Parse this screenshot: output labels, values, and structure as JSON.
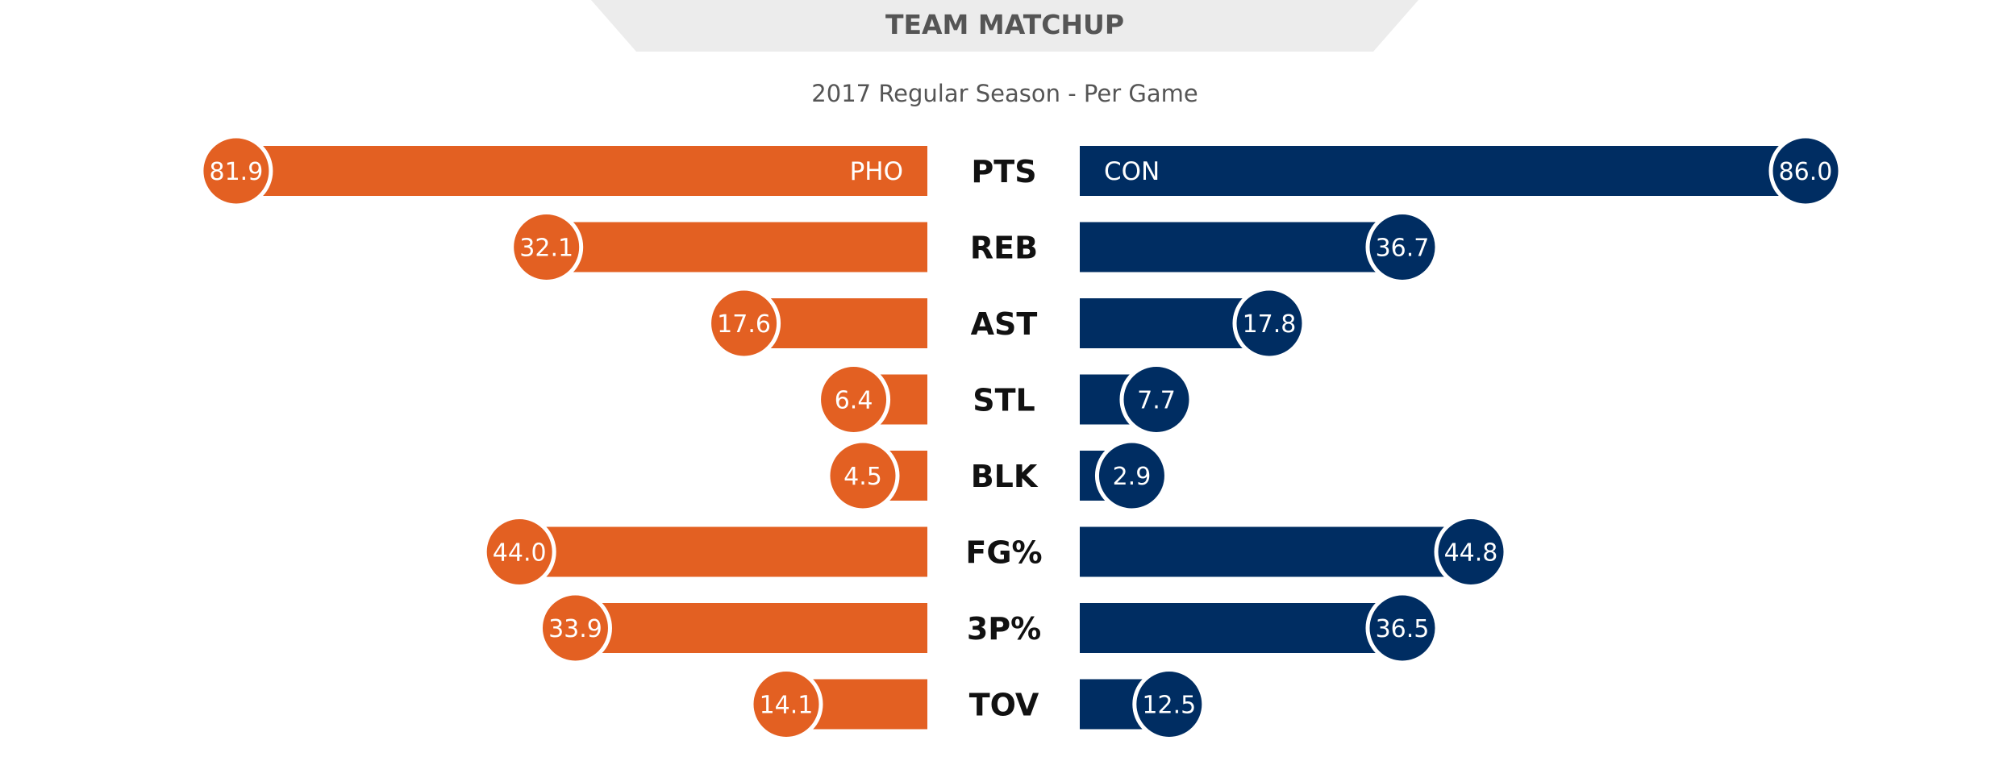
{
  "header": {
    "title": "TEAM MATCHUP",
    "subtitle": "2017 Regular Season - Per Game"
  },
  "colors": {
    "left_team": "#e36022",
    "right_team": "#002d62",
    "tab_background": "#ececec",
    "title_text": "#555555"
  },
  "chart_data": {
    "type": "bar",
    "orientation": "diverging-horizontal",
    "categories": [
      "PTS",
      "REB",
      "AST",
      "STL",
      "BLK",
      "FG%",
      "3P%",
      "TOV"
    ],
    "series": [
      {
        "name": "PHO",
        "side": "left",
        "values": [
          81.9,
          32.1,
          17.6,
          6.4,
          4.5,
          44.0,
          33.9,
          14.1
        ],
        "labels": [
          "81.9",
          "32.1",
          "17.6",
          "6.4",
          "4.5",
          "44.0",
          "33.9",
          "14.1"
        ]
      },
      {
        "name": "CON",
        "side": "right",
        "values": [
          86.0,
          36.7,
          17.8,
          7.7,
          2.9,
          44.8,
          36.5,
          12.5
        ],
        "labels": [
          "86.0",
          "36.7",
          "17.8",
          "7.7",
          "2.9",
          "44.8",
          "36.5",
          "12.5"
        ]
      }
    ],
    "grid": false,
    "legend": "none"
  }
}
